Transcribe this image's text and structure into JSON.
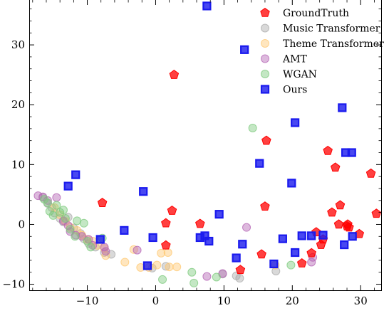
{
  "chart_data": {
    "type": "scatter",
    "title": "",
    "xlabel": "",
    "ylabel": "",
    "xlim": [
      -18.5,
      33
    ],
    "ylim": [
      -11,
      37.5
    ],
    "x_ticks": [
      -10,
      0,
      10,
      20,
      30
    ],
    "y_ticks": [
      -10,
      0,
      10,
      20,
      30
    ],
    "x_tick_labels": [
      "−10",
      "0",
      "10",
      "20",
      "30"
    ],
    "y_tick_labels": [
      "−10",
      "0",
      "10",
      "20",
      "30"
    ],
    "grid": false,
    "legend_position": "top-right",
    "series": [
      {
        "name": "GroundTruth",
        "marker": "pentagon",
        "color": "#ff0000",
        "points": [
          [
            2.7,
            25.0
          ],
          [
            16.2,
            14.0
          ],
          [
            31.5,
            8.5
          ],
          [
            26.3,
            9.5
          ],
          [
            25.2,
            12.3
          ],
          [
            27.0,
            3.2
          ],
          [
            25.8,
            2.0
          ],
          [
            32.3,
            1.8
          ],
          [
            16.0,
            3.0
          ],
          [
            2.4,
            2.3
          ],
          [
            1.5,
            0.2
          ],
          [
            6.5,
            0.1
          ],
          [
            -7.8,
            3.6
          ],
          [
            1.5,
            -3.5
          ],
          [
            15.5,
            -5.0
          ],
          [
            12.4,
            -7.6
          ],
          [
            21.4,
            -6.5
          ],
          [
            22.8,
            -4.8
          ],
          [
            23.5,
            -1.3
          ],
          [
            24.5,
            -2.5
          ],
          [
            24.2,
            -3.4
          ],
          [
            26.8,
            0.0
          ],
          [
            28.0,
            -0.3
          ],
          [
            28.3,
            -0.5
          ],
          [
            29.8,
            -1.6
          ],
          [
            28.1,
            0.0
          ]
        ]
      },
      {
        "name": "Music Transformer",
        "marker": "circle",
        "color": "#aaaaaa",
        "points": [
          [
            -16.5,
            4.5
          ],
          [
            -15.8,
            3.5
          ],
          [
            -15.2,
            2.8
          ],
          [
            -14.8,
            1.9
          ],
          [
            -14.0,
            1.0
          ],
          [
            -13.5,
            0.4
          ],
          [
            -12.8,
            1.2
          ],
          [
            -12.0,
            -0.6
          ],
          [
            -11.0,
            -1.5
          ],
          [
            -10.5,
            -2.4
          ],
          [
            -9.8,
            -3.2
          ],
          [
            -8.8,
            -3.8
          ],
          [
            -7.5,
            -4.7
          ],
          [
            -6.5,
            -5.0
          ],
          [
            -0.5,
            -7.3
          ],
          [
            1.5,
            -7.0
          ],
          [
            9.8,
            -8.3
          ],
          [
            11.8,
            -8.6
          ],
          [
            12.3,
            -9.0
          ],
          [
            17.6,
            -7.8
          ]
        ]
      },
      {
        "name": "Theme Transformer",
        "marker": "circle",
        "color": "#ffc870",
        "points": [
          [
            -14.8,
            2.8
          ],
          [
            -14.0,
            1.6
          ],
          [
            -13.2,
            0.5
          ],
          [
            -12.5,
            -0.5
          ],
          [
            -11.5,
            -1.0
          ],
          [
            -10.8,
            -1.8
          ],
          [
            -10.0,
            -2.5
          ],
          [
            -9.2,
            -2.8
          ],
          [
            -8.5,
            -3.5
          ],
          [
            -7.5,
            -4.0
          ],
          [
            -7.3,
            -5.2
          ],
          [
            -4.5,
            -6.3
          ],
          [
            -3.2,
            -4.2
          ],
          [
            -2.2,
            -7.2
          ],
          [
            -1.0,
            -7.2
          ],
          [
            0.2,
            -6.8
          ],
          [
            0.8,
            -4.8
          ],
          [
            1.8,
            -4.7
          ],
          [
            2.0,
            -7.1
          ],
          [
            3.1,
            -7.1
          ],
          [
            17.5,
            -6.8
          ]
        ]
      },
      {
        "name": "AMT",
        "marker": "circle",
        "color": "#b463b4",
        "points": [
          [
            -17.2,
            4.8
          ],
          [
            -16.5,
            4.6
          ],
          [
            -15.8,
            4.0
          ],
          [
            -14.5,
            4.5
          ],
          [
            -13.5,
            0.6
          ],
          [
            -12.8,
            -0.2
          ],
          [
            -12.5,
            -1.2
          ],
          [
            -11.7,
            -1.8
          ],
          [
            -10.8,
            -2.0
          ],
          [
            -9.8,
            -2.5
          ],
          [
            -9.2,
            -3.5
          ],
          [
            -7.3,
            -4.5
          ],
          [
            -7.5,
            -3.8
          ],
          [
            -2.7,
            -4.3
          ],
          [
            7.5,
            -8.7
          ],
          [
            9.8,
            -8.2
          ],
          [
            13.3,
            -0.5
          ],
          [
            22.8,
            -6.3
          ],
          [
            23.0,
            -5.5
          ]
        ]
      },
      {
        "name": "WGAN",
        "marker": "circle",
        "color": "#7cc97c",
        "points": [
          [
            -16.3,
            4.2
          ],
          [
            -15.8,
            3.6
          ],
          [
            -15.5,
            2.2
          ],
          [
            -15.0,
            1.5
          ],
          [
            -14.5,
            3.2
          ],
          [
            -14.0,
            2.0
          ],
          [
            -13.5,
            2.4
          ],
          [
            -13.2,
            1.0
          ],
          [
            -12.5,
            -0.8
          ],
          [
            -11.5,
            0.6
          ],
          [
            -11.8,
            -2.0
          ],
          [
            -10.5,
            0.2
          ],
          [
            -10.0,
            -2.8
          ],
          [
            -9.5,
            -3.8
          ],
          [
            -7.8,
            -2.3
          ],
          [
            1.0,
            -9.2
          ],
          [
            5.3,
            -8.0
          ],
          [
            5.6,
            -9.8
          ],
          [
            8.9,
            -8.8
          ],
          [
            14.2,
            16.1
          ],
          [
            19.8,
            -6.8
          ]
        ]
      },
      {
        "name": "Ours",
        "marker": "square",
        "color": "#1a1aee",
        "points": [
          [
            7.5,
            36.5
          ],
          [
            13.0,
            29.2
          ],
          [
            27.3,
            19.5
          ],
          [
            20.4,
            17.0
          ],
          [
            28.7,
            12.0
          ],
          [
            27.8,
            12.0
          ],
          [
            15.2,
            10.2
          ],
          [
            19.9,
            6.9
          ],
          [
            -11.7,
            8.3
          ],
          [
            -12.8,
            6.4
          ],
          [
            -1.8,
            5.5
          ],
          [
            9.3,
            1.7
          ],
          [
            -4.6,
            -1.0
          ],
          [
            -0.4,
            -2.2
          ],
          [
            6.5,
            -2.2
          ],
          [
            7.2,
            -1.9
          ],
          [
            7.8,
            -2.8
          ],
          [
            -8.1,
            -2.5
          ],
          [
            12.7,
            -3.3
          ],
          [
            18.6,
            -2.4
          ],
          [
            21.4,
            -1.9
          ],
          [
            22.8,
            -1.9
          ],
          [
            24.5,
            -1.8
          ],
          [
            28.8,
            -2.0
          ],
          [
            27.6,
            -3.4
          ],
          [
            11.8,
            -5.6
          ],
          [
            17.3,
            -6.6
          ],
          [
            -1.2,
            -6.9
          ],
          [
            20.4,
            -4.7
          ]
        ]
      }
    ]
  }
}
